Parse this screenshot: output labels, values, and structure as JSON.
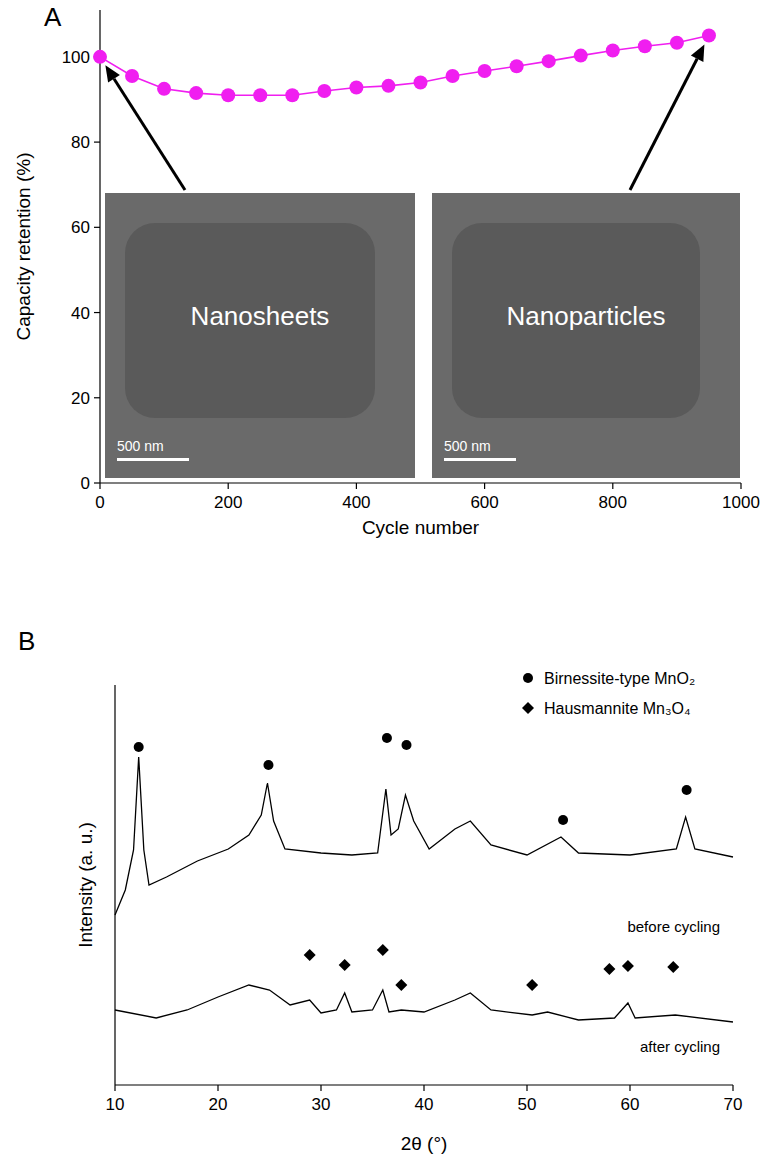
{
  "chart_data": [
    {
      "type": "line",
      "panel": "A",
      "x_label": "Cycle number",
      "y_label": "Capacity retention (%)",
      "xlim": [
        0,
        1000
      ],
      "ylim": [
        0,
        111
      ],
      "xticks": [
        0,
        200,
        400,
        600,
        800,
        1000
      ],
      "yticks": [
        0,
        20,
        40,
        60,
        80,
        100
      ],
      "series": [
        {
          "color": "#f01ef0",
          "marker": "circle",
          "x": [
            0,
            50,
            100,
            150,
            200,
            250,
            300,
            350,
            400,
            450,
            500,
            550,
            600,
            650,
            700,
            750,
            800,
            850,
            900,
            950
          ],
          "values": [
            100,
            95.5,
            92.5,
            91.5,
            91,
            91,
            91,
            92,
            92.8,
            93.2,
            94,
            95.5,
            96.7,
            97.8,
            99,
            100.3,
            101.5,
            102.5,
            103.3,
            105
          ]
        }
      ],
      "annotations": [
        {
          "text": "Nanosheets",
          "scale_bar": "500 nm"
        },
        {
          "text": "Nanoparticles",
          "scale_bar": "500 nm"
        }
      ]
    },
    {
      "type": "line",
      "panel": "B",
      "x_label": "2θ (°)",
      "y_label": "Intensity (a. u.)",
      "xlim": [
        10,
        70
      ],
      "ylim": [
        0,
        100
      ],
      "xticks": [
        10,
        20,
        30,
        40,
        50,
        60,
        70
      ],
      "tick_labels": "x",
      "legend": "upper right",
      "series": [
        {
          "name": "before cycling",
          "color": "#000000",
          "x": [
            10,
            11,
            11.8,
            12.3,
            12.8,
            13.3,
            15,
            18,
            21,
            23,
            24.2,
            24.8,
            25.4,
            26.5,
            30,
            33,
            35.5,
            36.3,
            36.8,
            37.5,
            38.2,
            39,
            40.5,
            43,
            44.5,
            46.5,
            50,
            53.3,
            55,
            60,
            64.5,
            65.4,
            66.3,
            70
          ],
          "values": [
            42.5,
            48.75,
            58.75,
            82,
            58.75,
            50,
            52,
            56,
            59,
            62.5,
            67.5,
            75.5,
            66,
            59,
            58,
            57.5,
            58,
            74,
            62.5,
            64,
            72.5,
            66,
            59,
            64,
            66,
            60,
            57.5,
            62,
            58,
            57.5,
            59,
            67,
            59,
            57
          ]
        },
        {
          "name": "after cycling",
          "color": "#000000",
          "x": [
            10,
            14,
            17,
            20,
            23,
            25,
            27,
            28.9,
            30,
            31.5,
            32.3,
            33,
            35,
            36,
            36.6,
            37.8,
            40,
            43,
            44.5,
            46.5,
            50.5,
            52,
            55,
            58.5,
            59.8,
            60.5,
            64.4,
            70
          ],
          "values": [
            18.75,
            16.75,
            18.75,
            22,
            25,
            23.75,
            20,
            21.25,
            18,
            18.75,
            23,
            18.25,
            18.75,
            23.75,
            18.25,
            18.75,
            18.25,
            21.25,
            23,
            18.75,
            17.5,
            18.25,
            16.25,
            16.75,
            20.5,
            16.75,
            17.5,
            15.75
          ]
        },
        {
          "name": "Birnessite-type MnO₂",
          "type": "scatter",
          "marker": "circle",
          "color": "#000000",
          "x": [
            12.3,
            24.9,
            36.4,
            38.3,
            53.5,
            65.5
          ],
          "values": [
            84.5,
            80,
            86.75,
            85,
            66.25,
            73.75
          ]
        },
        {
          "name": "Hausmannite Mn₃O₄",
          "type": "scatter",
          "marker": "diamond",
          "color": "#000000",
          "x": [
            28.9,
            32.3,
            36.0,
            37.8,
            50.5,
            58,
            59.8,
            64.2
          ],
          "values": [
            32.5,
            30,
            33.75,
            25,
            25,
            29,
            29.75,
            29.5
          ]
        }
      ]
    }
  ]
}
